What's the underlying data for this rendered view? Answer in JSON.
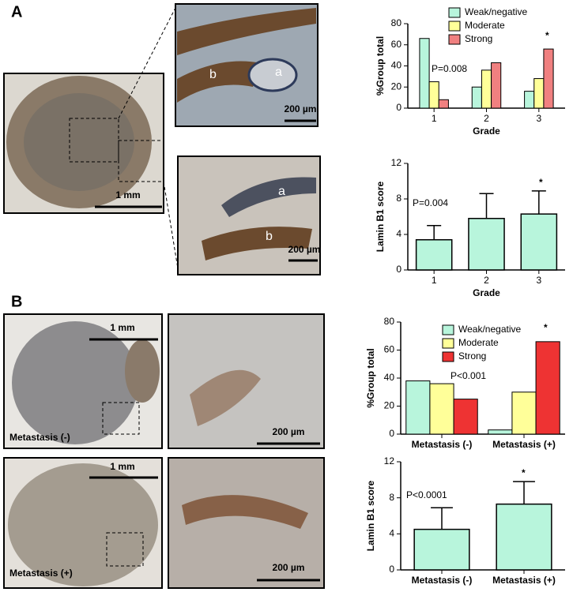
{
  "panel_a": {
    "label": "A",
    "scale_labels": [
      "1 mm",
      "200 µm",
      "200 µm"
    ],
    "region_labels": [
      "a",
      "b",
      "a",
      "b"
    ]
  },
  "panel_b": {
    "label": "B",
    "scale_labels": [
      "1 mm",
      "200 µm",
      "1 mm",
      "200 µm"
    ],
    "sample_labels": [
      "Metastasis (-)",
      "Metastasis (+)"
    ]
  },
  "chart_data": [
    {
      "type": "bar",
      "xlabel": "Grade",
      "ylabel": "%Group total",
      "categories": [
        "1",
        "2",
        "3"
      ],
      "series": [
        {
          "name": "Weak/negative",
          "color": "#b8f5dc",
          "values": [
            66,
            20,
            16
          ]
        },
        {
          "name": "Moderate",
          "color": "#ffff99",
          "values": [
            25,
            36,
            28
          ]
        },
        {
          "name": "Strong",
          "color": "#f08080",
          "values": [
            8,
            43,
            56
          ]
        }
      ],
      "ylim": [
        0,
        80
      ],
      "yticks": [
        0,
        20,
        40,
        60,
        80
      ],
      "legend": "top-right",
      "annotations": [
        "P=0.008",
        "*"
      ]
    },
    {
      "type": "bar",
      "xlabel": "Grade",
      "ylabel": "Lamin B1 score",
      "categories": [
        "1",
        "2",
        "3"
      ],
      "values": [
        3.4,
        5.8,
        6.3
      ],
      "errors": [
        1.6,
        2.8,
        2.6
      ],
      "color": "#b8f5dc",
      "ylim": [
        0,
        12
      ],
      "yticks": [
        0,
        4,
        8,
        12
      ],
      "annotations": [
        "P=0.004",
        "*"
      ]
    },
    {
      "type": "bar",
      "ylabel": "%Group total",
      "categories": [
        "Metastasis (-)",
        "Metastasis (+)"
      ],
      "series": [
        {
          "name": "Weak/negative",
          "color": "#b8f5dc",
          "values": [
            38,
            3
          ]
        },
        {
          "name": "Moderate",
          "color": "#ffff99",
          "values": [
            36,
            30
          ]
        },
        {
          "name": "Strong",
          "color": "#ee3333",
          "values": [
            25,
            66
          ]
        }
      ],
      "ylim": [
        0,
        80
      ],
      "yticks": [
        0,
        20,
        40,
        60,
        80
      ],
      "legend": "top-right",
      "annotations": [
        "P<0.001",
        "*"
      ]
    },
    {
      "type": "bar",
      "ylabel": "Lamin B1 score",
      "categories": [
        "Metastasis (-)",
        "Metastasis (+)"
      ],
      "values": [
        4.5,
        7.3
      ],
      "errors": [
        2.4,
        2.5
      ],
      "color": "#b8f5dc",
      "ylim": [
        0,
        12
      ],
      "yticks": [
        0,
        4,
        8,
        12
      ],
      "annotations": [
        "P<0.0001",
        "*"
      ]
    }
  ]
}
